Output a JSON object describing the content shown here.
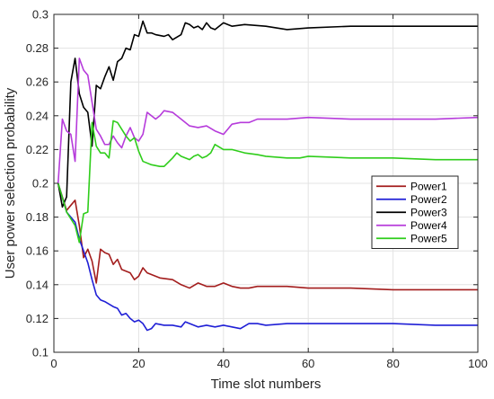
{
  "chart_data": {
    "type": "line",
    "xlabel": "Time slot numbers",
    "ylabel": "User power selection probability",
    "xlim": [
      0,
      100
    ],
    "ylim": [
      0.1,
      0.3
    ],
    "xticks": [
      "0",
      "20",
      "40",
      "60",
      "80",
      "100"
    ],
    "yticks": [
      "0.1",
      "0.12",
      "0.14",
      "0.16",
      "0.18",
      "0.2",
      "0.22",
      "0.24",
      "0.26",
      "0.28",
      "0.3"
    ],
    "grid": true,
    "legend_position": "middle-right",
    "series": [
      {
        "name": "Power1",
        "color": "#a31d1d",
        "points": [
          [
            1,
            0.2
          ],
          [
            3,
            0.184
          ],
          [
            4,
            0.187
          ],
          [
            5,
            0.19
          ],
          [
            6,
            0.175
          ],
          [
            7,
            0.156
          ],
          [
            8,
            0.161
          ],
          [
            9,
            0.154
          ],
          [
            10,
            0.141
          ],
          [
            11,
            0.161
          ],
          [
            12,
            0.159
          ],
          [
            13,
            0.158
          ],
          [
            14,
            0.152
          ],
          [
            15,
            0.155
          ],
          [
            16,
            0.149
          ],
          [
            17,
            0.148
          ],
          [
            18,
            0.147
          ],
          [
            19,
            0.143
          ],
          [
            20,
            0.145
          ],
          [
            21,
            0.15
          ],
          [
            22,
            0.147
          ],
          [
            23,
            0.146
          ],
          [
            25,
            0.144
          ],
          [
            28,
            0.143
          ],
          [
            30,
            0.14
          ],
          [
            32,
            0.138
          ],
          [
            34,
            0.141
          ],
          [
            36,
            0.139
          ],
          [
            38,
            0.139
          ],
          [
            40,
            0.141
          ],
          [
            42,
            0.139
          ],
          [
            44,
            0.138
          ],
          [
            46,
            0.138
          ],
          [
            48,
            0.139
          ],
          [
            50,
            0.139
          ],
          [
            55,
            0.139
          ],
          [
            60,
            0.138
          ],
          [
            70,
            0.138
          ],
          [
            80,
            0.137
          ],
          [
            90,
            0.137
          ],
          [
            100,
            0.137
          ]
        ]
      },
      {
        "name": "Power2",
        "color": "#1f1fd6",
        "points": [
          [
            1,
            0.2
          ],
          [
            3,
            0.183
          ],
          [
            5,
            0.177
          ],
          [
            6,
            0.167
          ],
          [
            7,
            0.16
          ],
          [
            8,
            0.153
          ],
          [
            9,
            0.143
          ],
          [
            10,
            0.134
          ],
          [
            11,
            0.131
          ],
          [
            12,
            0.13
          ],
          [
            14,
            0.127
          ],
          [
            15,
            0.126
          ],
          [
            16,
            0.122
          ],
          [
            17,
            0.123
          ],
          [
            18,
            0.12
          ],
          [
            19,
            0.118
          ],
          [
            20,
            0.119
          ],
          [
            21,
            0.117
          ],
          [
            22,
            0.113
          ],
          [
            23,
            0.114
          ],
          [
            24,
            0.117
          ],
          [
            26,
            0.116
          ],
          [
            28,
            0.116
          ],
          [
            30,
            0.115
          ],
          [
            31,
            0.118
          ],
          [
            32,
            0.117
          ],
          [
            34,
            0.115
          ],
          [
            36,
            0.116
          ],
          [
            38,
            0.115
          ],
          [
            40,
            0.116
          ],
          [
            42,
            0.115
          ],
          [
            44,
            0.114
          ],
          [
            46,
            0.117
          ],
          [
            48,
            0.117
          ],
          [
            50,
            0.116
          ],
          [
            55,
            0.117
          ],
          [
            60,
            0.117
          ],
          [
            70,
            0.117
          ],
          [
            80,
            0.117
          ],
          [
            90,
            0.116
          ],
          [
            100,
            0.116
          ]
        ]
      },
      {
        "name": "Power3",
        "color": "#000000",
        "points": [
          [
            1,
            0.2
          ],
          [
            2,
            0.186
          ],
          [
            3,
            0.192
          ],
          [
            4,
            0.26
          ],
          [
            5,
            0.274
          ],
          [
            6,
            0.253
          ],
          [
            7,
            0.245
          ],
          [
            8,
            0.242
          ],
          [
            9,
            0.222
          ],
          [
            10,
            0.258
          ],
          [
            11,
            0.256
          ],
          [
            12,
            0.263
          ],
          [
            13,
            0.269
          ],
          [
            14,
            0.261
          ],
          [
            15,
            0.272
          ],
          [
            16,
            0.274
          ],
          [
            17,
            0.28
          ],
          [
            18,
            0.279
          ],
          [
            19,
            0.288
          ],
          [
            20,
            0.287
          ],
          [
            21,
            0.296
          ],
          [
            22,
            0.289
          ],
          [
            23,
            0.289
          ],
          [
            24,
            0.288
          ],
          [
            26,
            0.287
          ],
          [
            27,
            0.288
          ],
          [
            28,
            0.285
          ],
          [
            30,
            0.288
          ],
          [
            31,
            0.295
          ],
          [
            32,
            0.294
          ],
          [
            33,
            0.292
          ],
          [
            34,
            0.293
          ],
          [
            35,
            0.291
          ],
          [
            36,
            0.295
          ],
          [
            37,
            0.292
          ],
          [
            38,
            0.291
          ],
          [
            40,
            0.295
          ],
          [
            42,
            0.293
          ],
          [
            45,
            0.294
          ],
          [
            50,
            0.293
          ],
          [
            55,
            0.291
          ],
          [
            60,
            0.292
          ],
          [
            70,
            0.293
          ],
          [
            80,
            0.293
          ],
          [
            90,
            0.293
          ],
          [
            100,
            0.293
          ]
        ]
      },
      {
        "name": "Power4",
        "color": "#b63bdb",
        "points": [
          [
            1,
            0.2
          ],
          [
            2,
            0.238
          ],
          [
            3,
            0.231
          ],
          [
            4,
            0.229
          ],
          [
            5,
            0.213
          ],
          [
            6,
            0.274
          ],
          [
            7,
            0.267
          ],
          [
            8,
            0.264
          ],
          [
            9,
            0.248
          ],
          [
            10,
            0.232
          ],
          [
            11,
            0.228
          ],
          [
            12,
            0.223
          ],
          [
            13,
            0.223
          ],
          [
            14,
            0.228
          ],
          [
            15,
            0.224
          ],
          [
            16,
            0.221
          ],
          [
            17,
            0.228
          ],
          [
            18,
            0.233
          ],
          [
            19,
            0.227
          ],
          [
            20,
            0.225
          ],
          [
            21,
            0.229
          ],
          [
            22,
            0.242
          ],
          [
            23,
            0.24
          ],
          [
            24,
            0.238
          ],
          [
            25,
            0.24
          ],
          [
            26,
            0.243
          ],
          [
            28,
            0.242
          ],
          [
            30,
            0.238
          ],
          [
            32,
            0.234
          ],
          [
            34,
            0.233
          ],
          [
            36,
            0.234
          ],
          [
            38,
            0.231
          ],
          [
            40,
            0.229
          ],
          [
            42,
            0.235
          ],
          [
            44,
            0.236
          ],
          [
            46,
            0.236
          ],
          [
            48,
            0.238
          ],
          [
            50,
            0.238
          ],
          [
            55,
            0.238
          ],
          [
            60,
            0.239
          ],
          [
            70,
            0.238
          ],
          [
            80,
            0.238
          ],
          [
            90,
            0.238
          ],
          [
            100,
            0.239
          ]
        ]
      },
      {
        "name": "Power5",
        "color": "#2fcd1b",
        "points": [
          [
            1,
            0.2
          ],
          [
            3,
            0.183
          ],
          [
            5,
            0.175
          ],
          [
            6,
            0.165
          ],
          [
            7,
            0.182
          ],
          [
            8,
            0.183
          ],
          [
            9,
            0.236
          ],
          [
            10,
            0.222
          ],
          [
            11,
            0.218
          ],
          [
            12,
            0.218
          ],
          [
            13,
            0.215
          ],
          [
            14,
            0.237
          ],
          [
            15,
            0.236
          ],
          [
            16,
            0.232
          ],
          [
            17,
            0.228
          ],
          [
            18,
            0.225
          ],
          [
            19,
            0.227
          ],
          [
            20,
            0.219
          ],
          [
            21,
            0.213
          ],
          [
            22,
            0.212
          ],
          [
            23,
            0.211
          ],
          [
            25,
            0.21
          ],
          [
            26,
            0.21
          ],
          [
            28,
            0.215
          ],
          [
            29,
            0.218
          ],
          [
            30,
            0.216
          ],
          [
            31,
            0.215
          ],
          [
            32,
            0.214
          ],
          [
            33,
            0.216
          ],
          [
            34,
            0.217
          ],
          [
            35,
            0.215
          ],
          [
            36,
            0.216
          ],
          [
            37,
            0.218
          ],
          [
            38,
            0.223
          ],
          [
            40,
            0.22
          ],
          [
            42,
            0.22
          ],
          [
            45,
            0.218
          ],
          [
            48,
            0.217
          ],
          [
            50,
            0.216
          ],
          [
            55,
            0.215
          ],
          [
            58,
            0.215
          ],
          [
            60,
            0.216
          ],
          [
            70,
            0.215
          ],
          [
            80,
            0.215
          ],
          [
            90,
            0.214
          ],
          [
            100,
            0.214
          ]
        ]
      }
    ]
  }
}
